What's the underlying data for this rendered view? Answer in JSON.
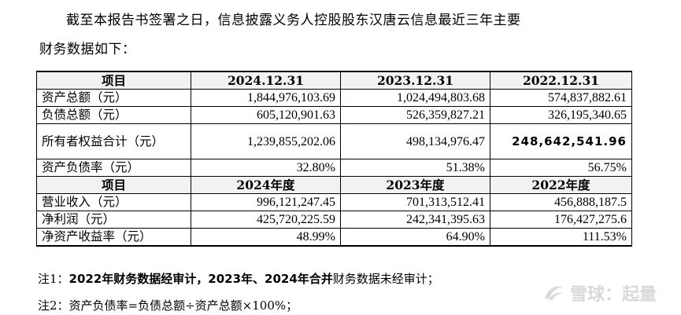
{
  "paragraph": {
    "line1": "截至本报告书签署之日，信息披露义务人控股股东汉唐云信息最近三年主要",
    "line2": "财务数据如下："
  },
  "table": {
    "header_balance": [
      "项目",
      "2024.12.31",
      "2023.12.31",
      "2022.12.31"
    ],
    "rows_balance": [
      {
        "label": "资产总额（元）",
        "values": [
          "1,844,976,103.69",
          "1,024,494,803.68",
          "574,837,882.61"
        ]
      },
      {
        "label": "负债总额（元）",
        "values": [
          "605,120,901.63",
          "526,359,827.21",
          "326,195,340.65"
        ]
      },
      {
        "label": "所有者权益合计（元）",
        "values": [
          "1,239,855,202.06",
          "498,134,976.47",
          "248,642,541.96"
        ]
      },
      {
        "label": "资产负债率（元）",
        "values": [
          "32.80%",
          "51.38%",
          "56.75%"
        ]
      }
    ],
    "header_income": [
      "项目",
      "2024年度",
      "2023年度",
      "2022年度"
    ],
    "rows_income": [
      {
        "label": "营业收入（元）",
        "values": [
          "996,121,247.45",
          "701,313,512.41",
          "456,888,187.5"
        ]
      },
      {
        "label": "净利润（元）",
        "values": [
          "425,720,225.59",
          "242,341,395.63",
          "176,427,275.6"
        ]
      },
      {
        "label": "净资产收益率（元）",
        "values": [
          "48.99%",
          "64.90%",
          "111.53%"
        ]
      }
    ]
  },
  "notes": {
    "note1_prefix": "注1：",
    "note1_bold": "2022年财务数据经审计，2023年、2024年合并",
    "note1_rest": "财务数据未经审计；",
    "note2": "注2：资产负债率=负债总额÷资产总额×100%；"
  },
  "watermark": {
    "text": "雪球：起量"
  }
}
